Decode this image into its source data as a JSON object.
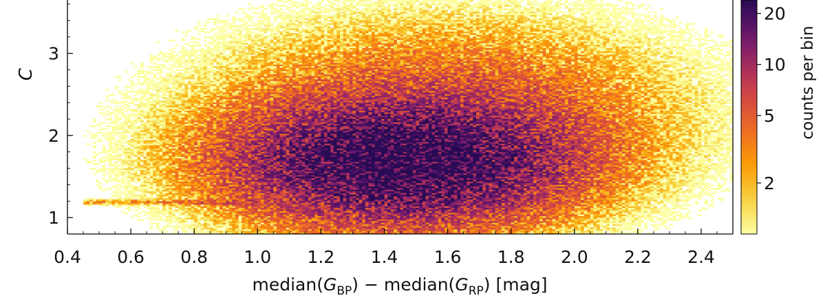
{
  "chart_data": {
    "type": "heatmap",
    "title": "",
    "xlabel": "median(G_BP) − median(G_RP)  [mag]",
    "xlabel_parts": {
      "prefix": "median(",
      "var1": "G",
      "sub1": "BP",
      "middle": ") − median(",
      "var2": "G",
      "sub2": "RP",
      "suffix": ")  [mag]"
    },
    "ylabel": "C",
    "xlim": [
      0.4,
      2.5
    ],
    "ylim": [
      0.8,
      3.65
    ],
    "xticks": [
      0.4,
      0.6,
      0.8,
      1.0,
      1.2,
      1.4,
      1.6,
      1.8,
      2.0,
      2.2,
      2.4
    ],
    "xtick_labels": [
      "0.4",
      "0.6",
      "0.8",
      "1.0",
      "1.2",
      "1.4",
      "1.6",
      "1.8",
      "2.0",
      "2.2",
      "2.4"
    ],
    "yticks": [
      1,
      2,
      3
    ],
    "ytick_labels": [
      "1",
      "2",
      "3"
    ],
    "colorbar": {
      "label": "counts per bin",
      "scale": "log",
      "range": [
        1,
        24
      ],
      "ticks": [
        2,
        5,
        10,
        20
      ],
      "tick_labels": [
        "2",
        "5",
        "10",
        "20"
      ],
      "colormap": "inferno (reversed)"
    },
    "density_components": [
      {
        "x_center": 1.45,
        "y_center": 1.65,
        "x_sigma": 0.32,
        "y_sigma": 0.45,
        "peak_counts": 24
      },
      {
        "x_center": 1.6,
        "y_center": 2.3,
        "x_sigma": 0.45,
        "y_sigma": 0.7,
        "peak_counts": 5
      }
    ],
    "ridge": {
      "y_value": 1.19,
      "x_range": [
        0.45,
        1.0
      ],
      "counts": 3
    },
    "grid": false
  }
}
